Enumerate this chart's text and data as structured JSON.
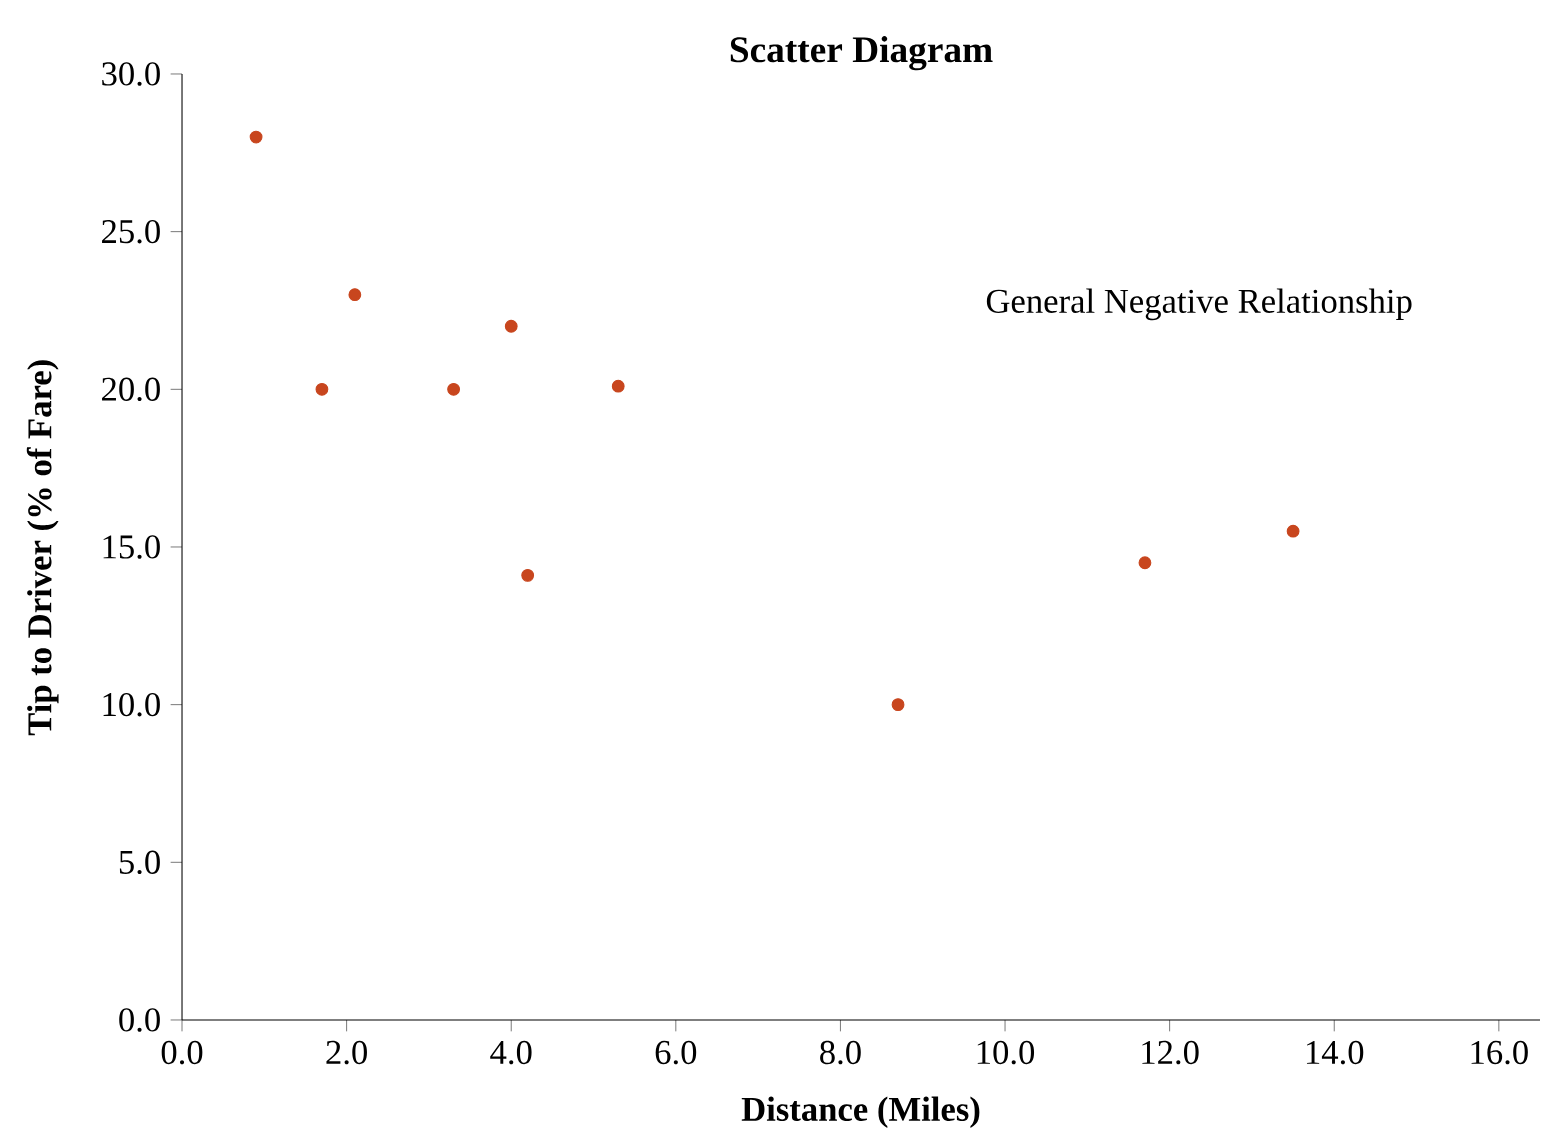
{
  "chart_data": {
    "type": "scatter",
    "title": "Scatter Diagram",
    "xlabel": "Distance (Miles)",
    "ylabel": "Tip to Driver (% of Fare)",
    "annotations": [
      "General Negative Relationship"
    ],
    "x": [
      0.9,
      1.7,
      2.1,
      3.3,
      4.0,
      4.2,
      5.3,
      8.7,
      11.7,
      13.5
    ],
    "values": [
      28.0,
      20.0,
      23.0,
      20.0,
      22.0,
      14.1,
      20.1,
      10.0,
      14.5,
      15.5
    ],
    "color": "#c8461e",
    "xlim": [
      0,
      16.5
    ],
    "ylim": [
      0,
      30
    ],
    "xticks": [
      {
        "value": 0,
        "label": "0.0"
      },
      {
        "value": 2,
        "label": "2.0"
      },
      {
        "value": 4,
        "label": "4.0"
      },
      {
        "value": 6,
        "label": "6.0"
      },
      {
        "value": 8,
        "label": "8.0"
      },
      {
        "value": 10,
        "label": "10.0"
      },
      {
        "value": 12,
        "label": "12.0"
      },
      {
        "value": 14,
        "label": "14.0"
      },
      {
        "value": 16,
        "label": "16.0"
      }
    ],
    "yticks": [
      {
        "value": 0,
        "label": "0.0"
      },
      {
        "value": 5,
        "label": "5.0"
      },
      {
        "value": 10,
        "label": "10.0"
      },
      {
        "value": 15,
        "label": "15.0"
      },
      {
        "value": 20,
        "label": "20.0"
      },
      {
        "value": 25,
        "label": "25.0"
      },
      {
        "value": 30,
        "label": "30.0"
      }
    ]
  }
}
